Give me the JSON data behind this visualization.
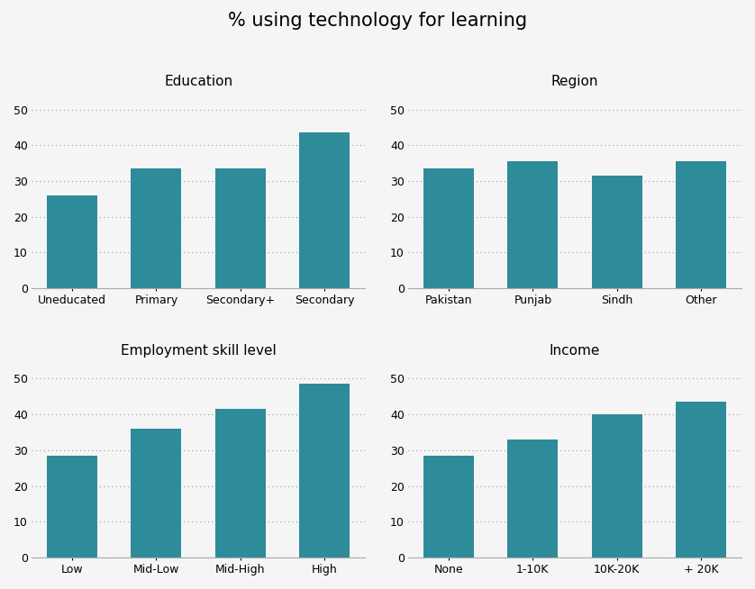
{
  "title": "% using technology for learning",
  "title_fontsize": 15,
  "bar_color": "#2e8b9a",
  "subplots": [
    {
      "title": "Education",
      "categories": [
        "Uneducated",
        "Primary",
        "Secondary+",
        "Secondary"
      ],
      "values": [
        26,
        33.5,
        33.5,
        43.5
      ]
    },
    {
      "title": "Region",
      "categories": [
        "Pakistan",
        "Punjab",
        "Sindh",
        "Other"
      ],
      "values": [
        33.5,
        35.5,
        31.5,
        35.5
      ]
    },
    {
      "title": "Employment skill level",
      "categories": [
        "Low",
        "Mid-Low",
        "Mid-High",
        "High"
      ],
      "values": [
        28.5,
        36,
        41.5,
        48.5
      ]
    },
    {
      "title": "Income",
      "categories": [
        "None",
        "1-10K",
        "10K-20K",
        "+ 20K"
      ],
      "values": [
        28.5,
        33,
        40,
        43.5
      ]
    }
  ],
  "ylim": [
    0,
    55
  ],
  "yticks": [
    0,
    10,
    20,
    30,
    40,
    50
  ],
  "subtitle_fontsize": 11,
  "tick_fontsize": 9,
  "background_color": "#f5f5f5",
  "figsize": [
    8.38,
    6.54
  ],
  "dpi": 100
}
